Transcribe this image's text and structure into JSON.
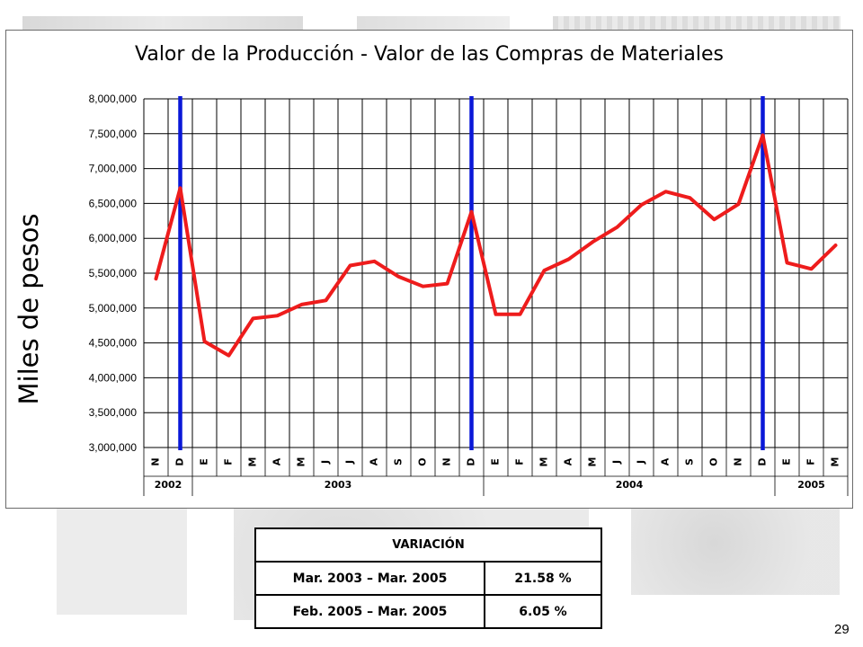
{
  "slide": {
    "page_number": "29"
  },
  "variation_table": {
    "header": "VARIACIÓN",
    "rows": [
      {
        "period": "Mar. 2003 – Mar. 2005",
        "value": "21.58 %"
      },
      {
        "period": "Feb. 2005 – Mar. 2005",
        "value": "6.05 %"
      }
    ]
  },
  "chart_data": {
    "type": "line",
    "title": "Valor de la Producción - Valor de las Compras de Materiales",
    "ylabel": "Miles de pesos",
    "xlabel": "",
    "ylim": [
      3000000,
      8000000
    ],
    "y_ticks": [
      "3,000,000",
      "3,500,000",
      "4,000,000",
      "4,500,000",
      "5,000,000",
      "5,500,000",
      "6,000,000",
      "6,500,000",
      "7,000,000",
      "7,500,000",
      "8,000,000"
    ],
    "y_tick_values": [
      3000000,
      3500000,
      4000000,
      4500000,
      5000000,
      5500000,
      6000000,
      6500000,
      7000000,
      7500000,
      8000000
    ],
    "grid": true,
    "categories": [
      "N",
      "D",
      "E",
      "F",
      "M",
      "A",
      "M",
      "J",
      "J",
      "A",
      "S",
      "O",
      "N",
      "D",
      "E",
      "F",
      "M",
      "A",
      "M",
      "J",
      "J",
      "A",
      "S",
      "O",
      "N",
      "D",
      "E",
      "F",
      "M"
    ],
    "year_groups": [
      {
        "label": "2002",
        "start": 0,
        "end": 1
      },
      {
        "label": "2003",
        "start": 2,
        "end": 13
      },
      {
        "label": "2004",
        "start": 14,
        "end": 25
      },
      {
        "label": "2005",
        "start": 26,
        "end": 28
      }
    ],
    "series": [
      {
        "values": [
          5420000,
          6720000,
          4520000,
          4320000,
          4850000,
          4890000,
          5050000,
          5110000,
          5610000,
          5670000,
          5450000,
          5310000,
          5350000,
          6380000,
          4910000,
          4910000,
          5540000,
          5700000,
          5950000,
          6160000,
          6480000,
          6670000,
          6580000,
          6270000,
          6490000,
          7480000,
          5650000,
          5560000,
          5900000
        ],
        "color": "#ee1c1c"
      }
    ],
    "december_markers": [
      1,
      13,
      25
    ],
    "marker_color": "#0a18d8"
  }
}
